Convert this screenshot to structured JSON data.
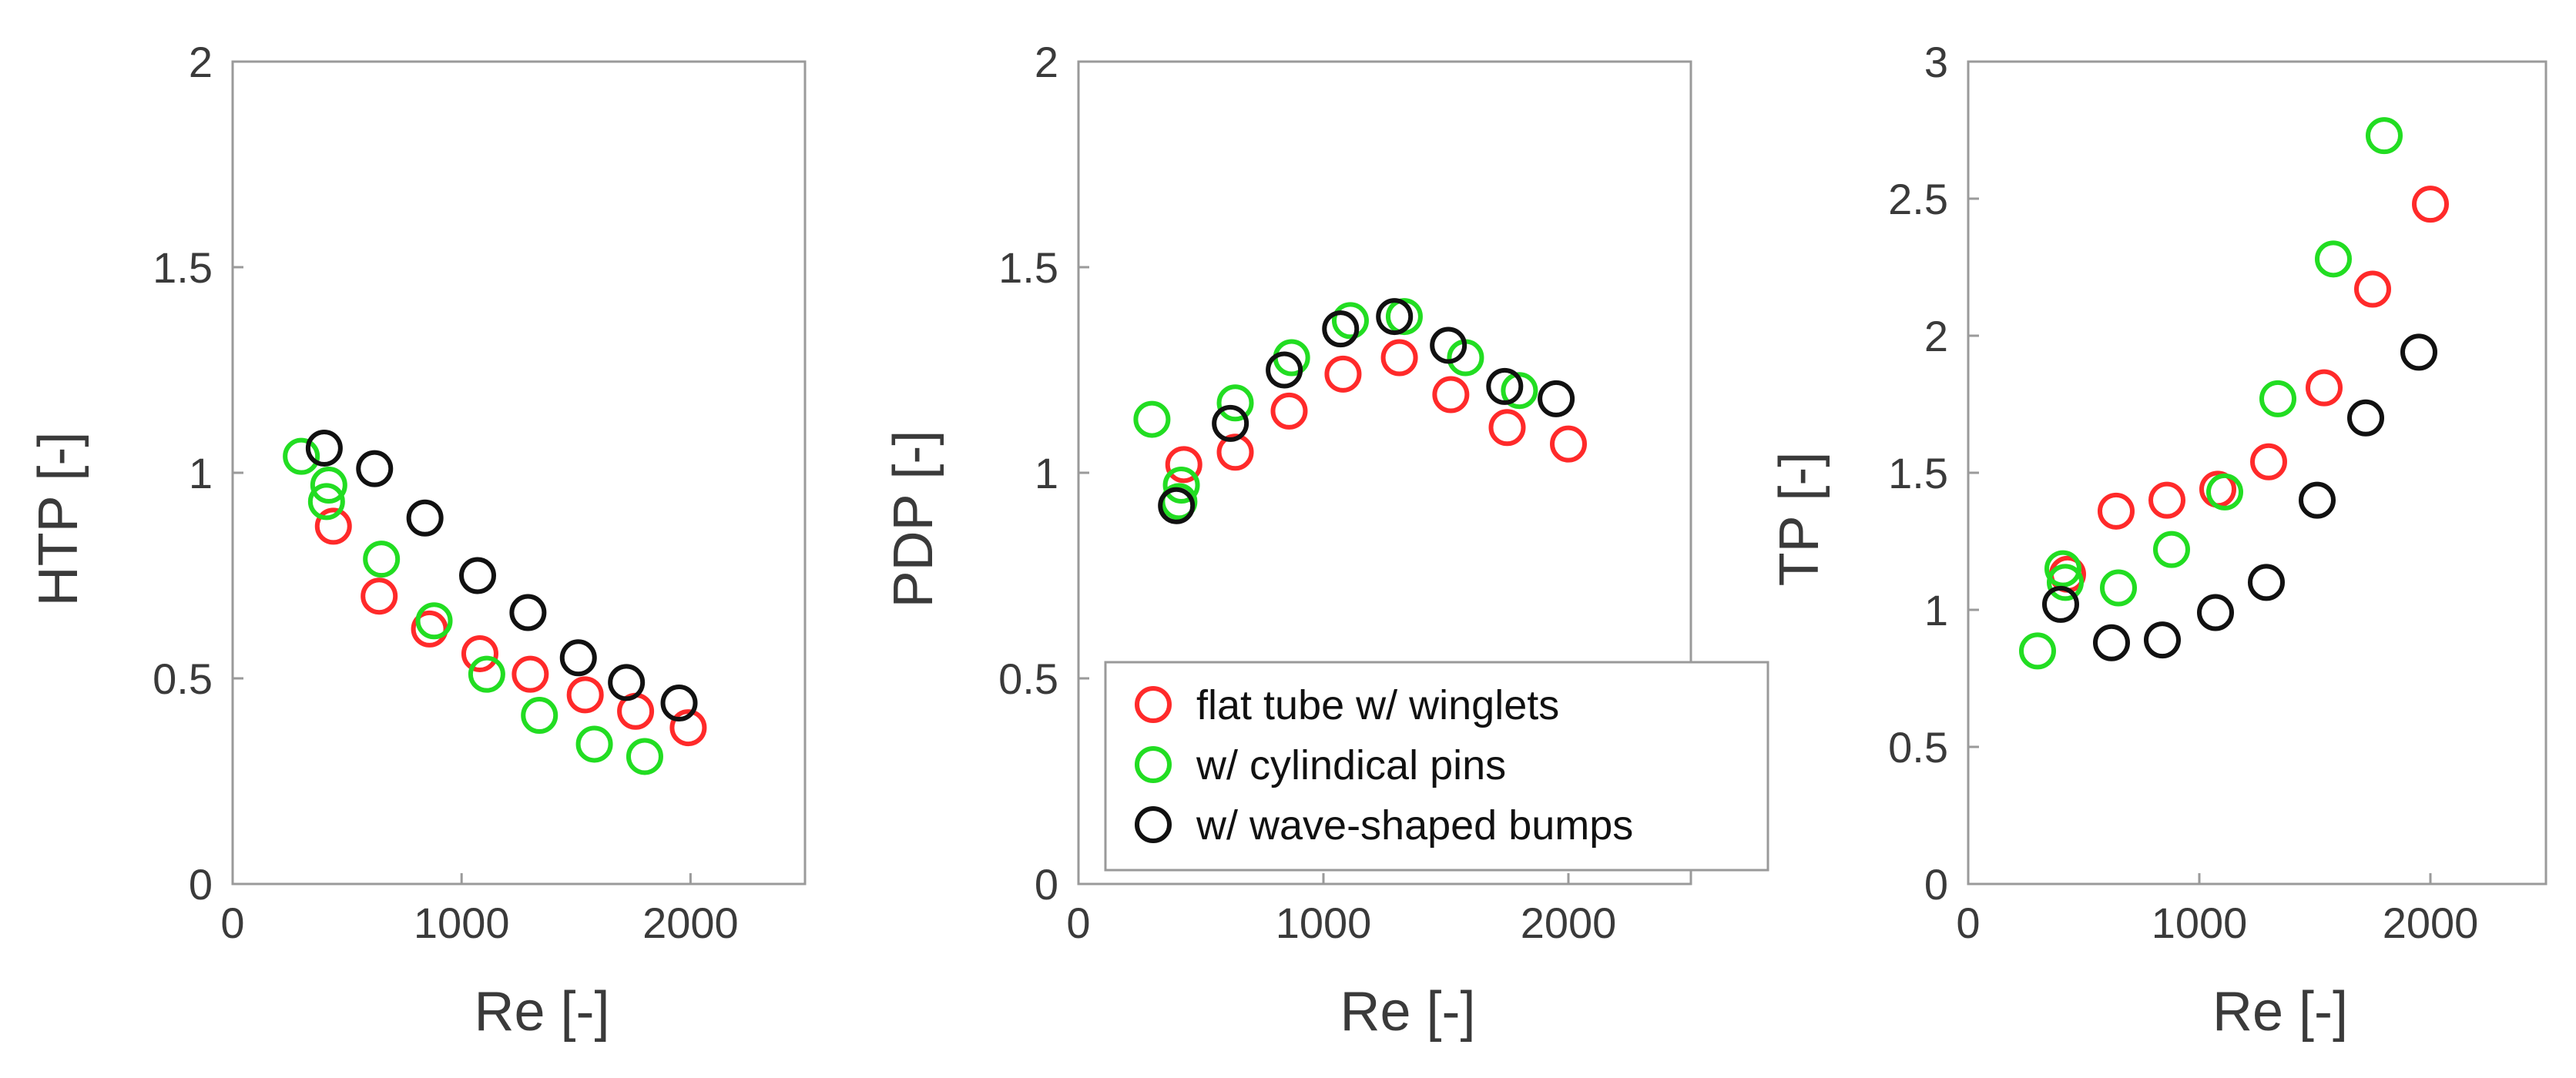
{
  "chart_data": [
    {
      "type": "scatter",
      "title": "",
      "xlabel": "Re [-]",
      "ylabel": "HTP [-]",
      "xlim": [
        0,
        2500
      ],
      "ylim": [
        0,
        2
      ],
      "xticks": [
        0,
        1000,
        2000
      ],
      "xtick_labels": [
        "0",
        "1000",
        "2000"
      ],
      "yticks": [
        0,
        0.5,
        1,
        1.5,
        2
      ],
      "ytick_labels": [
        "0",
        "0.5",
        "1",
        "1.5",
        "2"
      ],
      "grid": false,
      "series": [
        {
          "name": "flat tube w/ winglets",
          "color": "#ff2a2a",
          "x": [
            440,
            640,
            860,
            1080,
            1300,
            1540,
            1760,
            1990
          ],
          "y": [
            0.87,
            0.7,
            0.62,
            0.56,
            0.51,
            0.46,
            0.42,
            0.38
          ]
        },
        {
          "name": "w/ cylindical pins",
          "color": "#22dd22",
          "x": [
            300,
            410,
            420,
            650,
            880,
            1110,
            1340,
            1580,
            1800
          ],
          "y": [
            1.04,
            0.93,
            0.97,
            0.79,
            0.64,
            0.51,
            0.41,
            0.34,
            0.31
          ]
        },
        {
          "name": "w/ wave-shaped bumps",
          "color": "#111111",
          "x": [
            400,
            620,
            840,
            1070,
            1290,
            1510,
            1720,
            1950
          ],
          "y": [
            1.06,
            1.01,
            0.89,
            0.75,
            0.66,
            0.55,
            0.49,
            0.44
          ]
        }
      ]
    },
    {
      "type": "scatter",
      "title": "",
      "xlabel": "Re [-]",
      "ylabel": "PDP [-]",
      "xlim": [
        0,
        2500
      ],
      "ylim": [
        0,
        2
      ],
      "xticks": [
        0,
        1000,
        2000
      ],
      "xtick_labels": [
        "0",
        "1000",
        "2000"
      ],
      "yticks": [
        0,
        0.5,
        1,
        1.5,
        2
      ],
      "ytick_labels": [
        "0",
        "0.5",
        "1",
        "1.5",
        "2"
      ],
      "grid": false,
      "legend": "bottom-center",
      "series": [
        {
          "name": "flat tube w/ winglets",
          "color": "#ff2a2a",
          "x": [
            430,
            640,
            860,
            1080,
            1310,
            1520,
            1750,
            2000
          ],
          "y": [
            1.02,
            1.05,
            1.15,
            1.24,
            1.28,
            1.19,
            1.11,
            1.07
          ]
        },
        {
          "name": "w/ cylindical pins",
          "color": "#22dd22",
          "x": [
            300,
            410,
            420,
            640,
            870,
            1110,
            1330,
            1580,
            1800
          ],
          "y": [
            1.13,
            0.93,
            0.97,
            1.17,
            1.28,
            1.37,
            1.38,
            1.28,
            1.2
          ]
        },
        {
          "name": "w/ wave-shaped bumps",
          "color": "#111111",
          "x": [
            400,
            620,
            840,
            1070,
            1290,
            1510,
            1740,
            1950
          ],
          "y": [
            0.92,
            1.12,
            1.25,
            1.35,
            1.38,
            1.31,
            1.21,
            1.18
          ]
        }
      ],
      "legend_entries": [
        {
          "label": "flat tube w/ winglets",
          "color": "#ff2a2a"
        },
        {
          "label": "w/ cylindical pins",
          "color": "#22dd22"
        },
        {
          "label": "w/ wave-shaped bumps",
          "color": "#111111"
        }
      ]
    },
    {
      "type": "scatter",
      "title": "",
      "xlabel": "Re [-]",
      "ylabel": "TP [-]",
      "xlim": [
        0,
        2500
      ],
      "ylim": [
        0,
        3
      ],
      "xticks": [
        0,
        1000,
        2000
      ],
      "xtick_labels": [
        "0",
        "1000",
        "2000"
      ],
      "yticks": [
        0,
        0.5,
        1,
        1.5,
        2,
        2.5,
        3
      ],
      "ytick_labels": [
        "0",
        "0.5",
        "1",
        "1.5",
        "2",
        "2.5",
        "3"
      ],
      "grid": false,
      "series": [
        {
          "name": "flat tube w/ winglets",
          "color": "#ff2a2a",
          "x": [
            430,
            640,
            860,
            1080,
            1300,
            1540,
            1750,
            2000
          ],
          "y": [
            1.13,
            1.36,
            1.4,
            1.44,
            1.54,
            1.81,
            2.17,
            2.48
          ]
        },
        {
          "name": "w/ cylindical pins",
          "color": "#22dd22",
          "x": [
            300,
            410,
            420,
            650,
            880,
            1110,
            1340,
            1580,
            1800
          ],
          "y": [
            0.85,
            1.15,
            1.1,
            1.08,
            1.22,
            1.43,
            1.77,
            2.28,
            2.73
          ]
        },
        {
          "name": "w/ wave-shaped bumps",
          "color": "#111111",
          "x": [
            400,
            620,
            840,
            1070,
            1290,
            1510,
            1720,
            1950
          ],
          "y": [
            1.02,
            0.88,
            0.89,
            0.99,
            1.1,
            1.4,
            1.7,
            1.94
          ]
        }
      ]
    }
  ]
}
